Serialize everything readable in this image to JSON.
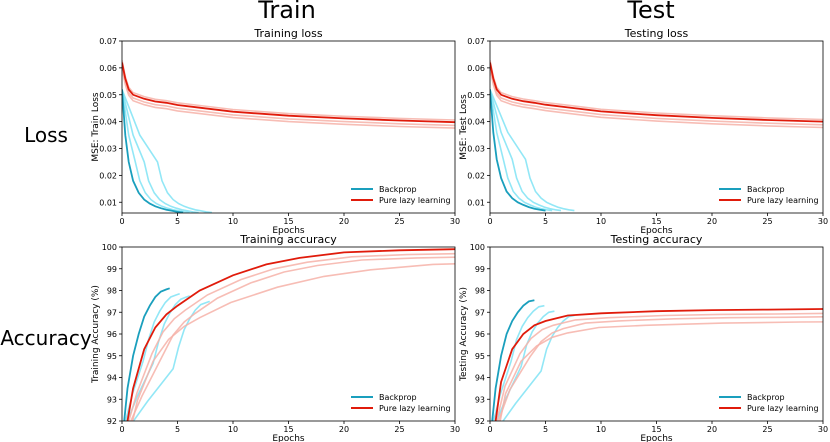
{
  "column_titles": [
    "Train",
    "Test"
  ],
  "row_titles": [
    "Loss",
    "Accuracy"
  ],
  "colors": {
    "backprop": "#1a9fbd",
    "backprop_light": "#7fe3f5",
    "lazy": "#e01b0b",
    "lazy_light": "#f6b2a8"
  },
  "chart_data": [
    {
      "type": "line",
      "title": "Training loss",
      "xlabel": "Epochs",
      "ylabel": "MSE: Train Loss",
      "xlim": [
        0,
        30
      ],
      "ylim": [
        0.006,
        0.07
      ],
      "xticks": [
        0,
        5,
        10,
        15,
        20,
        25,
        30
      ],
      "yticks": [
        0.01,
        0.02,
        0.03,
        0.04,
        0.05,
        0.06,
        0.07
      ],
      "ytick_labels": [
        "0.01",
        "0.02",
        "0.03",
        "0.04",
        "0.05",
        "0.06",
        "0.07"
      ],
      "legend": {
        "position": "lower-right",
        "entries": [
          "Backprop",
          "Pure lazy learning"
        ]
      },
      "series": [
        {
          "name": "Backprop",
          "x": [
            0,
            0.3,
            0.6,
            1,
            1.5,
            2,
            2.5,
            3,
            3.5,
            4,
            4.5,
            5,
            5.5
          ],
          "values": [
            0.052,
            0.035,
            0.025,
            0.018,
            0.0135,
            0.011,
            0.0095,
            0.0085,
            0.0078,
            0.0072,
            0.0068,
            0.0064,
            0.0062
          ]
        },
        {
          "name": "Pure lazy learning",
          "x": [
            0,
            0.3,
            0.6,
            1,
            2,
            3,
            4,
            5,
            7,
            10,
            15,
            20,
            25,
            30
          ],
          "values": [
            0.062,
            0.056,
            0.052,
            0.05,
            0.0485,
            0.0475,
            0.047,
            0.0462,
            0.0452,
            0.0437,
            0.0422,
            0.0412,
            0.0404,
            0.0398
          ]
        }
      ]
    },
    {
      "type": "line",
      "title": "Testing loss",
      "xlabel": "Epochs",
      "ylabel": "MSE: Test Loss",
      "xlim": [
        0,
        30
      ],
      "ylim": [
        0.006,
        0.07
      ],
      "xticks": [
        0,
        5,
        10,
        15,
        20,
        25,
        30
      ],
      "yticks": [
        0.01,
        0.02,
        0.03,
        0.04,
        0.05,
        0.06,
        0.07
      ],
      "ytick_labels": [
        "0.01",
        "0.02",
        "0.03",
        "0.04",
        "0.05",
        "0.06",
        "0.07"
      ],
      "legend": {
        "position": "lower-right",
        "entries": [
          "Backprop",
          "Pure lazy learning"
        ]
      },
      "series": [
        {
          "name": "Backprop",
          "x": [
            0,
            0.3,
            0.6,
            1,
            1.5,
            2,
            2.5,
            3,
            3.5,
            4,
            4.5,
            5
          ],
          "values": [
            0.052,
            0.036,
            0.026,
            0.019,
            0.014,
            0.0115,
            0.01,
            0.009,
            0.0082,
            0.0076,
            0.0072,
            0.0069
          ]
        },
        {
          "name": "Pure lazy learning",
          "x": [
            0,
            0.3,
            0.6,
            1,
            2,
            3,
            4,
            5,
            7,
            10,
            15,
            20,
            25,
            30
          ],
          "values": [
            0.062,
            0.056,
            0.052,
            0.05,
            0.0485,
            0.0476,
            0.047,
            0.0463,
            0.0453,
            0.0438,
            0.0424,
            0.0414,
            0.0406,
            0.04
          ]
        }
      ]
    },
    {
      "type": "line",
      "title": "Training accuracy",
      "xlabel": "Epochs",
      "ylabel": "Training Accuracy (%)",
      "xlim": [
        0,
        30
      ],
      "ylim": [
        92,
        100
      ],
      "xticks": [
        0,
        5,
        10,
        15,
        20,
        25,
        30
      ],
      "yticks": [
        92,
        93,
        94,
        95,
        96,
        97,
        98,
        99,
        100
      ],
      "ytick_labels": [
        "92",
        "93",
        "94",
        "95",
        "96",
        "97",
        "98",
        "99",
        "100"
      ],
      "legend": {
        "position": "lower-right",
        "entries": [
          "Backprop",
          "Pure lazy learning"
        ]
      },
      "series": [
        {
          "name": "Backprop",
          "x": [
            0.2,
            0.5,
            1,
            1.5,
            2,
            2.5,
            3,
            3.5,
            4,
            4.3
          ],
          "values": [
            92,
            93.5,
            95,
            96,
            96.8,
            97.3,
            97.7,
            97.95,
            98.05,
            98.1
          ]
        },
        {
          "name": "Pure lazy learning",
          "x": [
            0.5,
            1,
            2,
            3,
            4,
            5,
            7,
            10,
            13,
            16,
            20,
            25,
            30
          ],
          "values": [
            92,
            93.5,
            95.3,
            96.3,
            96.9,
            97.3,
            98,
            98.7,
            99.2,
            99.5,
            99.75,
            99.85,
            99.9
          ]
        }
      ]
    },
    {
      "type": "line",
      "title": "Testing accuracy",
      "xlabel": "Epochs",
      "ylabel": "Testing Accuracy (%)",
      "xlim": [
        0,
        30
      ],
      "ylim": [
        92,
        100
      ],
      "xticks": [
        0,
        5,
        10,
        15,
        20,
        25,
        30
      ],
      "yticks": [
        92,
        93,
        94,
        95,
        96,
        97,
        98,
        99,
        100
      ],
      "ytick_labels": [
        "92",
        "93",
        "94",
        "95",
        "96",
        "97",
        "98",
        "99",
        "100"
      ],
      "legend": {
        "position": "lower-right",
        "entries": [
          "Backprop",
          "Pure lazy learning"
        ]
      },
      "series": [
        {
          "name": "Backprop",
          "x": [
            0.2,
            0.5,
            1,
            1.5,
            2,
            2.5,
            3,
            3.5,
            4
          ],
          "values": [
            92,
            93.5,
            95,
            96,
            96.6,
            97,
            97.3,
            97.5,
            97.55
          ]
        },
        {
          "name": "Pure lazy learning",
          "x": [
            0.5,
            1,
            2,
            3,
            4,
            5,
            7,
            10,
            15,
            20,
            25,
            30
          ],
          "values": [
            92,
            93.8,
            95.3,
            96,
            96.4,
            96.6,
            96.85,
            96.95,
            97.05,
            97.1,
            97.12,
            97.15
          ]
        }
      ]
    }
  ]
}
